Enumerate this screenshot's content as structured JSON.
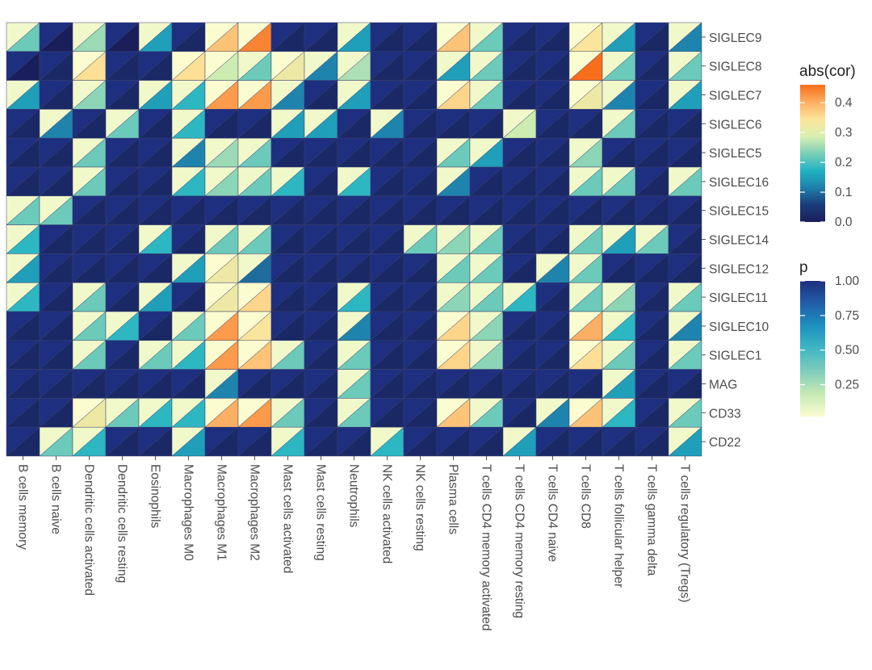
{
  "chart_data": {
    "type": "heatmap",
    "title": "",
    "xlabel": "",
    "ylabel": "",
    "x_categories": [
      "B cells memory",
      "B cells naive",
      "Dendritic cells activated",
      "Dendritic cells resting",
      "Eosinophils",
      "Macrophages M0",
      "Macrophages M1",
      "Macrophages M2",
      "Mast cells activated",
      "Mast cells resting",
      "Neutrophils",
      "NK cells activated",
      "NK cells resting",
      "Plasma cells",
      "T cells CD4 memory activated",
      "T cells CD4 memory resting",
      "T cells CD4 naive",
      "T cells CD8",
      "T cells follicular helper",
      "T cells gamma delta",
      "T cells regulatory (Tregs)"
    ],
    "y_categories": [
      "SIGLEC9",
      "SIGLEC8",
      "SIGLEC7",
      "SIGLEC6",
      "SIGLEC5",
      "SIGLEC16",
      "SIGLEC15",
      "SIGLEC14",
      "SIGLEC12",
      "SIGLEC11",
      "SIGLEC10",
      "SIGLEC1",
      "MAG",
      "CD33",
      "CD22"
    ],
    "abs_cor": [
      [
        0.22,
        0.0,
        0.25,
        0.0,
        0.15,
        0.02,
        0.38,
        0.44,
        0.02,
        0.02,
        0.15,
        0.02,
        0.02,
        0.38,
        0.22,
        0.02,
        0.02,
        0.34,
        0.15,
        0.02,
        0.12
      ],
      [
        0.0,
        0.02,
        0.35,
        0.02,
        0.02,
        0.35,
        0.28,
        0.22,
        0.32,
        0.12,
        0.26,
        0.02,
        0.02,
        0.15,
        0.22,
        0.02,
        0.02,
        0.46,
        0.22,
        0.02,
        0.22
      ],
      [
        0.15,
        0.02,
        0.24,
        0.02,
        0.15,
        0.18,
        0.42,
        0.42,
        0.12,
        0.02,
        0.15,
        0.02,
        0.02,
        0.36,
        0.22,
        0.02,
        0.02,
        0.32,
        0.12,
        0.02,
        0.15
      ],
      [
        0.02,
        0.12,
        0.02,
        0.22,
        0.02,
        0.18,
        0.02,
        0.02,
        0.15,
        0.15,
        0.02,
        0.12,
        0.02,
        0.02,
        0.02,
        0.28,
        0.02,
        0.02,
        0.22,
        0.02,
        0.02
      ],
      [
        0.02,
        0.02,
        0.22,
        0.02,
        0.02,
        0.12,
        0.25,
        0.22,
        0.02,
        0.02,
        0.02,
        0.02,
        0.02,
        0.22,
        0.15,
        0.02,
        0.02,
        0.24,
        0.02,
        0.02,
        0.02
      ],
      [
        0.02,
        0.02,
        0.22,
        0.02,
        0.02,
        0.18,
        0.24,
        0.22,
        0.18,
        0.02,
        0.18,
        0.02,
        0.02,
        0.12,
        0.02,
        0.02,
        0.02,
        0.22,
        0.22,
        0.02,
        0.22
      ],
      [
        0.22,
        0.22,
        0.02,
        0.02,
        0.02,
        0.02,
        0.02,
        0.02,
        0.02,
        0.02,
        0.02,
        0.02,
        0.02,
        0.02,
        0.02,
        0.02,
        0.02,
        0.02,
        0.02,
        0.02,
        0.02
      ],
      [
        0.18,
        0.02,
        0.02,
        0.02,
        0.18,
        0.02,
        0.22,
        0.22,
        0.02,
        0.02,
        0.02,
        0.02,
        0.22,
        0.24,
        0.22,
        0.02,
        0.02,
        0.22,
        0.15,
        0.22,
        0.02
      ],
      [
        0.15,
        0.02,
        0.02,
        0.02,
        0.02,
        0.15,
        0.32,
        0.1,
        0.02,
        0.02,
        0.02,
        0.02,
        0.02,
        0.22,
        0.22,
        0.02,
        0.12,
        0.22,
        0.02,
        0.02,
        0.02
      ],
      [
        0.18,
        0.02,
        0.22,
        0.02,
        0.15,
        0.02,
        0.32,
        0.36,
        0.02,
        0.02,
        0.18,
        0.02,
        0.02,
        0.24,
        0.22,
        0.18,
        0.02,
        0.22,
        0.24,
        0.02,
        0.22
      ],
      [
        0.02,
        0.02,
        0.22,
        0.18,
        0.02,
        0.22,
        0.42,
        0.34,
        0.02,
        0.02,
        0.12,
        0.02,
        0.02,
        0.36,
        0.24,
        0.02,
        0.02,
        0.4,
        0.18,
        0.02,
        0.12
      ],
      [
        0.02,
        0.02,
        0.22,
        0.02,
        0.22,
        0.18,
        0.42,
        0.38,
        0.22,
        0.02,
        0.22,
        0.02,
        0.02,
        0.36,
        0.24,
        0.02,
        0.02,
        0.35,
        0.22,
        0.02,
        0.22
      ],
      [
        0.02,
        0.02,
        0.02,
        0.02,
        0.02,
        0.02,
        0.12,
        0.02,
        0.02,
        0.02,
        0.22,
        0.02,
        0.02,
        0.02,
        0.02,
        0.02,
        0.02,
        0.02,
        0.15,
        0.02,
        0.02
      ],
      [
        0.02,
        0.02,
        0.32,
        0.22,
        0.18,
        0.18,
        0.4,
        0.42,
        0.22,
        0.02,
        0.22,
        0.02,
        0.02,
        0.38,
        0.22,
        0.02,
        0.12,
        0.38,
        0.18,
        0.02,
        0.22
      ],
      [
        0.02,
        0.22,
        0.18,
        0.02,
        0.02,
        0.15,
        0.02,
        0.02,
        0.18,
        0.02,
        0.02,
        0.18,
        0.02,
        0.02,
        0.02,
        0.15,
        0.02,
        0.02,
        0.02,
        0.02,
        0.15
      ]
    ],
    "p": [
      [
        0.05,
        1.0,
        0.05,
        1.0,
        0.05,
        1.0,
        0.02,
        0.02,
        1.0,
        1.0,
        0.05,
        1.0,
        1.0,
        0.02,
        0.05,
        1.0,
        1.0,
        0.02,
        0.05,
        1.0,
        0.05
      ],
      [
        1.0,
        1.0,
        0.02,
        1.0,
        1.0,
        0.02,
        0.02,
        0.05,
        0.02,
        0.05,
        0.05,
        1.0,
        1.0,
        0.05,
        0.05,
        1.0,
        1.0,
        0.02,
        0.05,
        1.0,
        0.05
      ],
      [
        0.05,
        1.0,
        0.05,
        1.0,
        0.05,
        0.05,
        0.02,
        0.02,
        0.05,
        1.0,
        0.05,
        1.0,
        1.0,
        0.02,
        0.05,
        1.0,
        1.0,
        0.02,
        0.05,
        1.0,
        0.05
      ],
      [
        1.0,
        0.05,
        1.0,
        0.05,
        1.0,
        0.05,
        1.0,
        1.0,
        0.05,
        0.05,
        1.0,
        0.05,
        1.0,
        1.0,
        1.0,
        0.05,
        1.0,
        1.0,
        0.05,
        1.0,
        1.0
      ],
      [
        1.0,
        1.0,
        0.05,
        1.0,
        1.0,
        0.05,
        0.05,
        0.05,
        1.0,
        1.0,
        1.0,
        1.0,
        1.0,
        0.05,
        0.05,
        1.0,
        1.0,
        0.05,
        1.0,
        1.0,
        1.0
      ],
      [
        1.0,
        1.0,
        0.05,
        1.0,
        1.0,
        0.05,
        0.05,
        0.05,
        0.05,
        1.0,
        0.05,
        1.0,
        1.0,
        0.05,
        1.0,
        1.0,
        1.0,
        0.05,
        0.05,
        1.0,
        0.05
      ],
      [
        0.05,
        0.05,
        1.0,
        1.0,
        1.0,
        1.0,
        1.0,
        1.0,
        1.0,
        1.0,
        1.0,
        1.0,
        1.0,
        1.0,
        1.0,
        1.0,
        1.0,
        1.0,
        1.0,
        1.0,
        1.0
      ],
      [
        0.05,
        1.0,
        1.0,
        1.0,
        0.05,
        1.0,
        0.05,
        0.05,
        1.0,
        1.0,
        1.0,
        1.0,
        0.05,
        0.05,
        0.05,
        1.0,
        1.0,
        0.05,
        0.05,
        0.05,
        1.0
      ],
      [
        0.05,
        1.0,
        1.0,
        1.0,
        1.0,
        0.05,
        0.02,
        0.05,
        1.0,
        1.0,
        1.0,
        1.0,
        1.0,
        0.05,
        0.05,
        1.0,
        0.05,
        0.05,
        1.0,
        1.0,
        1.0
      ],
      [
        0.05,
        1.0,
        0.05,
        1.0,
        0.05,
        1.0,
        0.02,
        0.02,
        1.0,
        1.0,
        0.05,
        1.0,
        1.0,
        0.05,
        0.05,
        0.05,
        1.0,
        0.05,
        0.05,
        1.0,
        0.05
      ],
      [
        1.0,
        1.0,
        0.05,
        0.05,
        1.0,
        0.05,
        0.02,
        0.02,
        1.0,
        1.0,
        0.05,
        1.0,
        1.0,
        0.02,
        0.05,
        1.0,
        1.0,
        0.02,
        0.05,
        1.0,
        0.05
      ],
      [
        1.0,
        1.0,
        0.05,
        1.0,
        0.05,
        0.05,
        0.02,
        0.02,
        0.05,
        1.0,
        0.05,
        1.0,
        1.0,
        0.02,
        0.05,
        1.0,
        1.0,
        0.02,
        0.05,
        1.0,
        0.05
      ],
      [
        1.0,
        1.0,
        1.0,
        1.0,
        1.0,
        1.0,
        0.05,
        1.0,
        1.0,
        1.0,
        0.05,
        1.0,
        1.0,
        1.0,
        1.0,
        1.0,
        1.0,
        1.0,
        0.05,
        1.0,
        1.0
      ],
      [
        1.0,
        1.0,
        0.02,
        0.05,
        0.05,
        0.05,
        0.02,
        0.02,
        0.05,
        1.0,
        0.05,
        1.0,
        1.0,
        0.02,
        0.05,
        1.0,
        0.05,
        0.02,
        0.05,
        1.0,
        0.05
      ],
      [
        1.0,
        0.05,
        0.05,
        1.0,
        1.0,
        0.05,
        1.0,
        1.0,
        0.05,
        1.0,
        1.0,
        0.05,
        1.0,
        1.0,
        1.0,
        0.05,
        1.0,
        1.0,
        1.0,
        1.0,
        0.05
      ]
    ],
    "legend": [
      {
        "title": "abs(cor)",
        "labels": [
          "0.4",
          "0.3",
          "0.2",
          "0.1",
          "0.0"
        ],
        "values": [
          0.4,
          0.3,
          0.2,
          0.1,
          0.0
        ],
        "range": [
          0,
          0.46
        ]
      },
      {
        "title": "p",
        "labels": [
          "1.00",
          "0.75",
          "0.50",
          "0.25"
        ],
        "values": [
          1.0,
          0.75,
          0.5,
          0.25
        ],
        "range": [
          0.02,
          1.0
        ]
      }
    ],
    "palette_cor": [
      "#1a1f5c",
      "#1b3b7a",
      "#1f7fab",
      "#21b3c4",
      "#7ccfb8",
      "#d9f0b0",
      "#fde49a",
      "#fdae61",
      "#f96e1a"
    ],
    "palette_p": [
      "#fbfdd0",
      "#c7e9b4",
      "#7fcdbb",
      "#41b6c4",
      "#1d91c0",
      "#225ea8",
      "#1e2f7f"
    ],
    "grid": false,
    "legend_position": "right"
  }
}
